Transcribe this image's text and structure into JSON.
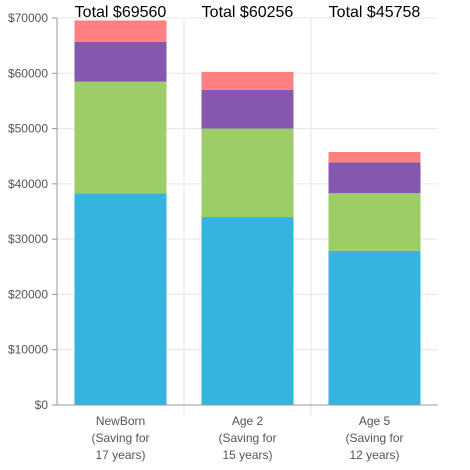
{
  "chart_data": {
    "type": "bar",
    "stacked": true,
    "categories": [
      [
        "NewBorn",
        "(Saving for",
        "17 years)"
      ],
      [
        "Age 2",
        "(Saving for",
        "15 years)"
      ],
      [
        "Age 5",
        "(Saving for",
        "12 years)"
      ]
    ],
    "totals": [
      "Total $69560",
      "Total $60256",
      "Total $45758"
    ],
    "series": [
      {
        "color": "#35b4df",
        "values": [
          38300,
          34000,
          27900
        ]
      },
      {
        "color": "#9ccd66",
        "values": [
          20200,
          16000,
          10400
        ]
      },
      {
        "color": "#8658ad",
        "values": [
          7200,
          7000,
          5600
        ]
      },
      {
        "color": "#ff8080",
        "values": [
          3860,
          3256,
          1858
        ]
      }
    ],
    "yticks": [
      "$0",
      "$10000",
      "$20000",
      "$30000",
      "$40000",
      "$50000",
      "$60000",
      "$70000"
    ],
    "ylim": [
      0,
      70000
    ],
    "grid": true
  }
}
